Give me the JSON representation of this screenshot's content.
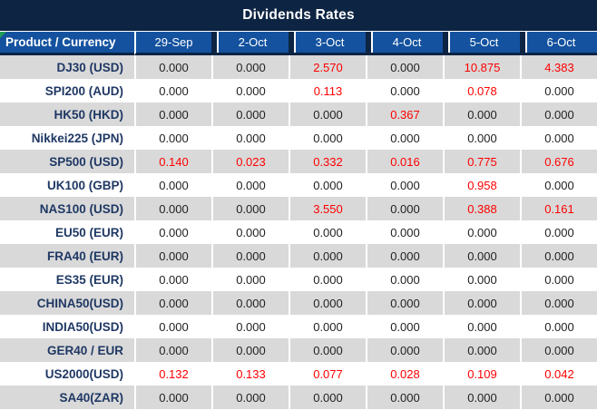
{
  "title": "Dividends Rates",
  "colors": {
    "title_bar_bg": "#0D2443",
    "header_bg": "#14529F",
    "header_text": "#FFFFFF",
    "row_even_bg": "#D9D9D9",
    "row_odd_bg": "#FFFFFF",
    "product_text": "#1F3864",
    "value_text": "#1F1F1F",
    "value_highlight": "#FE0000",
    "corner_marker": "#1F9D55"
  },
  "table": {
    "product_header": "Product / Currency",
    "date_headers": [
      "29-Sep",
      "2-Oct",
      "3-Oct",
      "4-Oct",
      "5-Oct",
      "6-Oct"
    ],
    "rows": [
      {
        "product": "DJ30 (USD)",
        "values": [
          "0.000",
          "0.000",
          "2.570",
          "0.000",
          "10.875",
          "4.383"
        ]
      },
      {
        "product": "SPI200 (AUD)",
        "values": [
          "0.000",
          "0.000",
          "0.113",
          "0.000",
          "0.078",
          "0.000"
        ]
      },
      {
        "product": "HK50 (HKD)",
        "values": [
          "0.000",
          "0.000",
          "0.000",
          "0.367",
          "0.000",
          "0.000"
        ]
      },
      {
        "product": "Nikkei225 (JPN)",
        "values": [
          "0.000",
          "0.000",
          "0.000",
          "0.000",
          "0.000",
          "0.000"
        ]
      },
      {
        "product": "SP500 (USD)",
        "values": [
          "0.140",
          "0.023",
          "0.332",
          "0.016",
          "0.775",
          "0.676"
        ]
      },
      {
        "product": "UK100 (GBP)",
        "values": [
          "0.000",
          "0.000",
          "0.000",
          "0.000",
          "0.958",
          "0.000"
        ]
      },
      {
        "product": "NAS100 (USD)",
        "values": [
          "0.000",
          "0.000",
          "3.550",
          "0.000",
          "0.388",
          "0.161"
        ]
      },
      {
        "product": "EU50 (EUR)",
        "values": [
          "0.000",
          "0.000",
          "0.000",
          "0.000",
          "0.000",
          "0.000"
        ]
      },
      {
        "product": "FRA40 (EUR)",
        "values": [
          "0.000",
          "0.000",
          "0.000",
          "0.000",
          "0.000",
          "0.000"
        ]
      },
      {
        "product": "ES35 (EUR)",
        "values": [
          "0.000",
          "0.000",
          "0.000",
          "0.000",
          "0.000",
          "0.000"
        ]
      },
      {
        "product": "CHINA50(USD)",
        "values": [
          "0.000",
          "0.000",
          "0.000",
          "0.000",
          "0.000",
          "0.000"
        ]
      },
      {
        "product": "INDIA50(USD)",
        "values": [
          "0.000",
          "0.000",
          "0.000",
          "0.000",
          "0.000",
          "0.000"
        ]
      },
      {
        "product": "GER40 / EUR",
        "values": [
          "0.000",
          "0.000",
          "0.000",
          "0.000",
          "0.000",
          "0.000"
        ]
      },
      {
        "product": "US2000(USD)",
        "values": [
          "0.132",
          "0.133",
          "0.077",
          "0.028",
          "0.109",
          "0.042"
        ]
      },
      {
        "product": "SA40(ZAR)",
        "values": [
          "0.000",
          "0.000",
          "0.000",
          "0.000",
          "0.000",
          "0.000"
        ]
      }
    ]
  }
}
